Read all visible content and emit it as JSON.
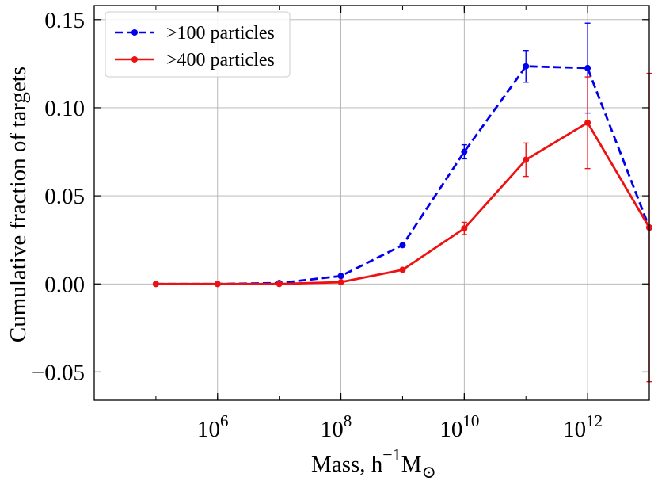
{
  "chart_data": {
    "type": "line",
    "xlabel": "Mass, h",
    "xlabel_sup": "−1",
    "xlabel_unit": "M",
    "xlabel_sub": "⊙",
    "ylabel": "Cumulative fraction of targets",
    "xscale": "log",
    "x_data_range": [
      10000,
      10000000000000
    ],
    "ylim": [
      -0.066,
      0.158
    ],
    "grid": true,
    "legend_position": "top-left",
    "x_ticks": [
      {
        "base": "10",
        "exp": "6",
        "value": 1000000
      },
      {
        "base": "10",
        "exp": "8",
        "value": 100000000
      },
      {
        "base": "10",
        "exp": "10",
        "value": 10000000000
      },
      {
        "base": "10",
        "exp": "12",
        "value": 1000000000000
      }
    ],
    "y_ticks": [
      {
        "value": -0.05,
        "label": "−0.05"
      },
      {
        "value": 0.0,
        "label": "0.00"
      },
      {
        "value": 0.05,
        "label": "0.05"
      },
      {
        "value": 0.1,
        "label": "0.10"
      },
      {
        "value": 0.15,
        "label": "0.15"
      }
    ],
    "x": [
      100000,
      1000000,
      10000000,
      100000000,
      1000000000,
      10000000000,
      100000000000,
      1000000000000,
      10000000000000
    ],
    "series": [
      {
        "name": ">100 particles",
        "color": "#0000ee",
        "dashed": true,
        "values": [
          0.0,
          0.0,
          0.0005,
          0.0045,
          0.022,
          0.075,
          0.1235,
          0.1225,
          0.032
        ],
        "errors": [
          0.0,
          0.0,
          0.0,
          0.0,
          0.0,
          0.004,
          0.009,
          0.0255,
          0.0
        ]
      },
      {
        "name": ">400 particles",
        "color": "#ee1111",
        "dashed": false,
        "values": [
          0.0,
          0.0,
          0.0,
          0.001,
          0.008,
          0.0315,
          0.0705,
          0.0915,
          0.032
        ],
        "errors": [
          0.0,
          0.0,
          0.0,
          0.0,
          0.0,
          0.0035,
          0.0095,
          0.026,
          0.0875
        ]
      }
    ]
  }
}
